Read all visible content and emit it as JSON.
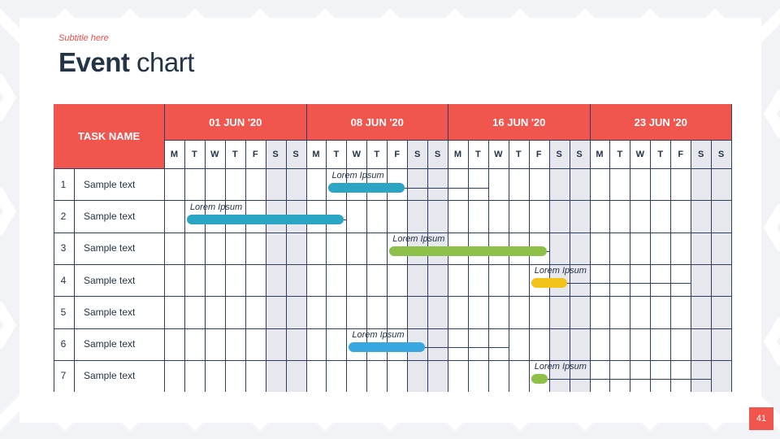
{
  "header": {
    "subtitle": "Subtitle here",
    "title_bold": "Event",
    "title_light": "chart"
  },
  "table": {
    "task_header": "TASK NAME",
    "weeks": [
      "01 JUN '20",
      "08 JUN '20",
      "16 JUN '20",
      "23 JUN '20"
    ],
    "days": [
      "M",
      "T",
      "W",
      "T",
      "F",
      "S",
      "S"
    ],
    "rows": [
      {
        "num": "1",
        "task": "Sample text"
      },
      {
        "num": "2",
        "task": "Sample text"
      },
      {
        "num": "3",
        "task": "Sample text"
      },
      {
        "num": "4",
        "task": "Sample text"
      },
      {
        "num": "5",
        "task": "Sample text"
      },
      {
        "num": "6",
        "task": "Sample text"
      },
      {
        "num": "7",
        "task": "Sample text"
      }
    ]
  },
  "events": [
    {
      "row": 1,
      "label": "Lorem Ipsum",
      "start_day": 8,
      "end_day": 11,
      "line_end_day": 16,
      "color": "#2aa5c4"
    },
    {
      "row": 2,
      "label": "Lorem Ipsum",
      "start_day": 1,
      "end_day": 8,
      "line_end_day": 9,
      "color": "#2aa5c4"
    },
    {
      "row": 3,
      "label": "Lorem Ipsum",
      "start_day": 11,
      "end_day": 18,
      "line_end_day": 19,
      "color": "#8fc04a"
    },
    {
      "row": 4,
      "label": "Lorem Ipsum",
      "start_day": 18,
      "end_day": 19,
      "line_end_day": 26,
      "color": "#f2c31a"
    },
    {
      "row": 6,
      "label": "Lorem Ipsum",
      "start_day": 9,
      "end_day": 12,
      "line_end_day": 17,
      "color": "#3aa8e0"
    },
    {
      "row": 7,
      "label": "Lorem Ipsum",
      "start_day": 18,
      "end_day": 18,
      "line_end_day": 27,
      "color": "#8fc04a"
    }
  ],
  "colors": {
    "accent": "#f0554e",
    "grid": "#2e3e62",
    "text": "#243447",
    "weekend": "#e6e8ee"
  },
  "page": {
    "number": "41"
  }
}
